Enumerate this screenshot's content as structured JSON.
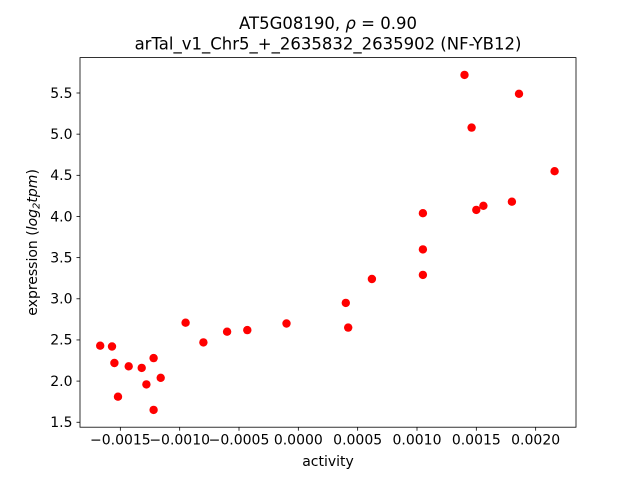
{
  "labels": {
    "title_line1_prefix": "AT5G08190, ",
    "title_line1_rho": "ρ",
    "title_line1_suffix": " = 0.90",
    "title_line2": "arTal_v1_Chr5_+_2635832_2635902 (NF-YB12)",
    "xlabel": "activity",
    "ylabel_prefix": "expression (",
    "ylabel_log": "log",
    "ylabel_sub": "2",
    "ylabel_tpm": "tpm",
    "ylabel_suffix": ")"
  },
  "chart_data": {
    "type": "scatter",
    "title": "AT5G08190, ρ = 0.90",
    "subtitle": "arTal_v1_Chr5_+_2635832_2635902 (NF-YB12)",
    "xlabel": "activity",
    "ylabel": "expression (log2tpm)",
    "marker_color": "#ff0000",
    "grid": false,
    "legend": "none",
    "xlim": [
      -0.00184,
      0.00234
    ],
    "ylim": [
      1.44,
      5.93
    ],
    "xticks": [
      -0.0015,
      -0.001,
      -0.0005,
      0,
      0.0005,
      0.001,
      0.0015,
      0.002
    ],
    "xtick_labels": [
      "−0.0015",
      "−0.0010",
      "−0.0005",
      "0.0000",
      "0.0005",
      "0.0010",
      "0.0015",
      "0.0020"
    ],
    "yticks": [
      1.5,
      2,
      2.5,
      3,
      3.5,
      4,
      4.5,
      5,
      5.5
    ],
    "ytick_labels": [
      "1.5",
      "2.0",
      "2.5",
      "3.0",
      "3.5",
      "4.0",
      "4.5",
      "5.0",
      "5.5"
    ],
    "points": [
      {
        "x": -0.00167,
        "y": 2.43
      },
      {
        "x": -0.00157,
        "y": 2.42
      },
      {
        "x": -0.00155,
        "y": 2.22
      },
      {
        "x": -0.00152,
        "y": 1.81
      },
      {
        "x": -0.00143,
        "y": 2.18
      },
      {
        "x": -0.00132,
        "y": 2.16
      },
      {
        "x": -0.00128,
        "y": 1.96
      },
      {
        "x": -0.00122,
        "y": 2.28
      },
      {
        "x": -0.00122,
        "y": 1.65
      },
      {
        "x": -0.00116,
        "y": 2.04
      },
      {
        "x": -0.00095,
        "y": 2.71
      },
      {
        "x": -0.0008,
        "y": 2.47
      },
      {
        "x": -0.0006,
        "y": 2.6
      },
      {
        "x": -0.00043,
        "y": 2.62
      },
      {
        "x": -0.0001,
        "y": 2.7
      },
      {
        "x": 0.0004,
        "y": 2.95
      },
      {
        "x": 0.00042,
        "y": 2.65
      },
      {
        "x": 0.00062,
        "y": 3.24
      },
      {
        "x": 0.00105,
        "y": 4.04
      },
      {
        "x": 0.00105,
        "y": 3.6
      },
      {
        "x": 0.00105,
        "y": 3.29
      },
      {
        "x": 0.0014,
        "y": 5.72
      },
      {
        "x": 0.00146,
        "y": 5.08
      },
      {
        "x": 0.0015,
        "y": 4.08
      },
      {
        "x": 0.00156,
        "y": 4.13
      },
      {
        "x": 0.0018,
        "y": 4.18
      },
      {
        "x": 0.00186,
        "y": 5.49
      },
      {
        "x": 0.00216,
        "y": 4.55
      }
    ]
  }
}
